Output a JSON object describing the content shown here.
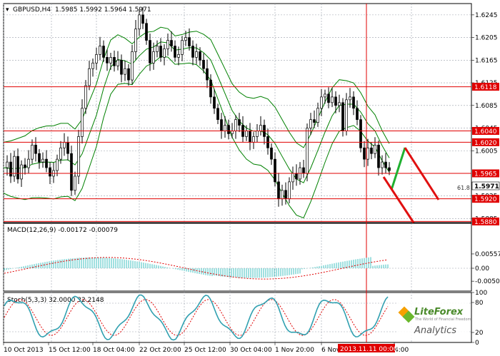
{
  "header": {
    "symbol_label": "GBPUSD,H4",
    "ohlc": "1.5985 1.5992 1.5964 1.5971"
  },
  "price_axis": {
    "ticks": [
      "1.6245",
      "1.6205",
      "1.6165",
      "1.6125",
      "1.6085",
      "1.6045",
      "1.6005",
      "1.5925",
      "1.5885"
    ]
  },
  "levels": [
    {
      "value": "1.6118",
      "color": "#e00000"
    },
    {
      "value": "1.6040",
      "color": "#e00000"
    },
    {
      "value": "1.6020",
      "color": "#e00000"
    },
    {
      "value": "1.5965",
      "color": "#e00000"
    },
    {
      "value": "1.5920",
      "color": "#e00000"
    },
    {
      "value": "1.5880",
      "color": "#e00000"
    }
  ],
  "current_price": "1.5971",
  "fib_label": "61.8",
  "macd": {
    "label": "MACD(12,26,9) -0.00172 -0.00079",
    "ticks": [
      "0.00557",
      "0.00",
      "-0.00504"
    ]
  },
  "stoch": {
    "label": "Stoch(5,3,3) 32.0000 32.2148",
    "ticks": [
      "100",
      "80",
      "20",
      "0"
    ]
  },
  "time_axis": {
    "labels": [
      "10 Oct 2013",
      "15 Oct 12:00",
      "18 Oct 04:00",
      "22 Oct 20:00",
      "25 Oct 12:00",
      "30 Oct 04:00",
      "1 Nov 20:00",
      "6 Nov 12:00",
      "4:00"
    ],
    "highlight": "2013.11.11 00:00"
  },
  "logo": {
    "brand": "LiteForex",
    "tagline": "The World of Financial Freedom",
    "sub": "Analytics"
  },
  "colors": {
    "support_resistance": "#e00000",
    "bollinger": "#008000",
    "macd_hist": "#40c0c0",
    "macd_signal": "#e00000",
    "stoch_main": "#30a0b0",
    "forecast_up": "#20b030",
    "forecast_down": "#e01010"
  }
}
